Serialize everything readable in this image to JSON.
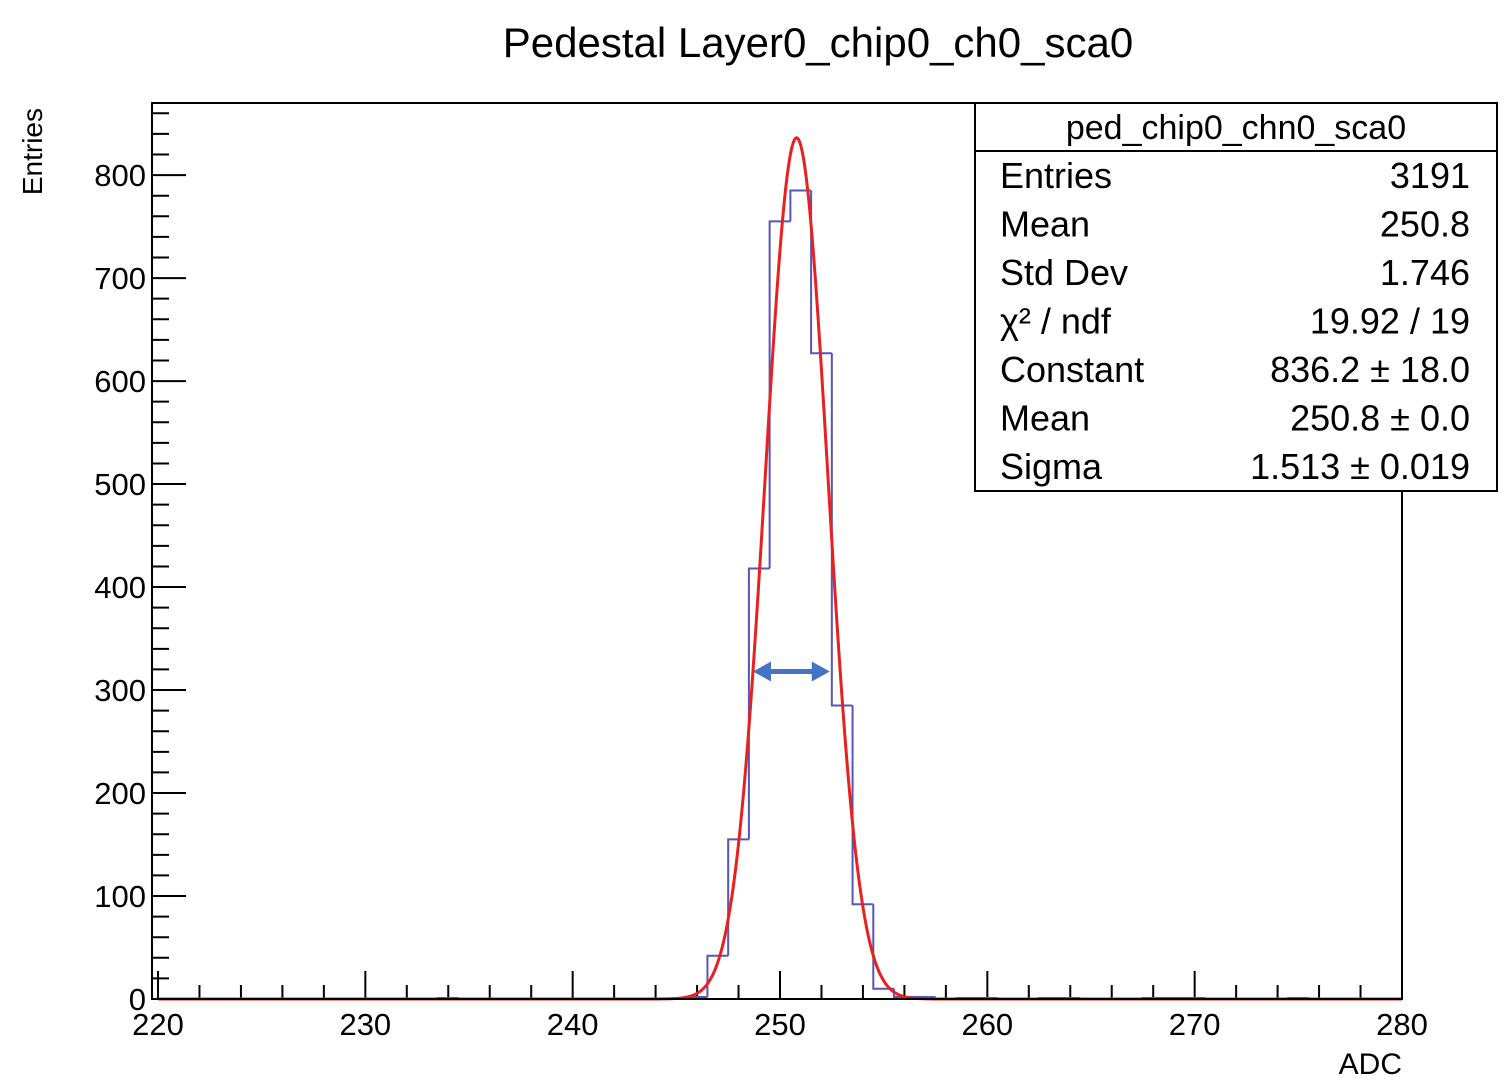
{
  "chart_data": {
    "type": "histogram",
    "title": "Pedestal Layer0_chip0_ch0_sca0",
    "xlabel": "ADC",
    "ylabel": "Entries",
    "xlim": [
      220,
      280
    ],
    "ylim": [
      0,
      870
    ],
    "x_ticks": [
      220,
      230,
      240,
      250,
      260,
      270,
      280
    ],
    "y_ticks": [
      0,
      100,
      200,
      300,
      400,
      500,
      600,
      700,
      800
    ],
    "grid": false,
    "series": [
      {
        "kind": "histogram",
        "color": "#5555bb",
        "bins": [
          {
            "x0": 220,
            "x1": 233.5,
            "value": 0
          },
          {
            "x0": 233.5,
            "x1": 234.5,
            "value": 1
          },
          {
            "x0": 234.5,
            "x1": 245.5,
            "value": 0
          },
          {
            "x0": 245.5,
            "x1": 246.5,
            "value": 2
          },
          {
            "x0": 246.5,
            "x1": 247.5,
            "value": 42
          },
          {
            "x0": 247.5,
            "x1": 248.5,
            "value": 155
          },
          {
            "x0": 248.5,
            "x1": 249.5,
            "value": 418
          },
          {
            "x0": 249.5,
            "x1": 250.5,
            "value": 755
          },
          {
            "x0": 250.5,
            "x1": 251.5,
            "value": 785
          },
          {
            "x0": 251.5,
            "x1": 252.5,
            "value": 627
          },
          {
            "x0": 252.5,
            "x1": 253.5,
            "value": 285
          },
          {
            "x0": 253.5,
            "x1": 254.5,
            "value": 92
          },
          {
            "x0": 254.5,
            "x1": 255.5,
            "value": 10
          },
          {
            "x0": 255.5,
            "x1": 257.5,
            "value": 2
          },
          {
            "x0": 257.5,
            "x1": 258.5,
            "value": 0
          },
          {
            "x0": 258.5,
            "x1": 260.5,
            "value": 1
          },
          {
            "x0": 260.5,
            "x1": 262.5,
            "value": 0
          },
          {
            "x0": 262.5,
            "x1": 264.5,
            "value": 1
          },
          {
            "x0": 264.5,
            "x1": 267.5,
            "value": 0
          },
          {
            "x0": 267.5,
            "x1": 270.5,
            "value": 1
          },
          {
            "x0": 270.5,
            "x1": 274.5,
            "value": 0
          },
          {
            "x0": 274.5,
            "x1": 275.5,
            "value": 1
          },
          {
            "x0": 275.5,
            "x1": 280,
            "value": 0
          }
        ]
      },
      {
        "kind": "gaussian-fit",
        "color": "#e8201f",
        "constant": 836.2,
        "mean": 250.8,
        "sigma": 1.513
      }
    ],
    "annotations": [
      {
        "type": "double-arrow",
        "color": "#4472c4",
        "x0": 248.7,
        "x1": 252.4,
        "y": 318
      }
    ],
    "stats_box": {
      "placement": "top-right",
      "title": "ped_chip0_chn0_sca0",
      "rows": [
        {
          "label": "Entries",
          "value": "3191"
        },
        {
          "label": "Mean",
          "value": "250.8"
        },
        {
          "label": "Std Dev",
          "value": "1.746"
        },
        {
          "label": "χ² / ndf",
          "value": "19.92 / 19"
        },
        {
          "label": "Constant",
          "value": "836.2 ± 18.0"
        },
        {
          "label": "Mean",
          "value": "250.8 ± 0.0"
        },
        {
          "label": "Sigma",
          "value": "1.513 ± 0.019"
        }
      ]
    }
  }
}
